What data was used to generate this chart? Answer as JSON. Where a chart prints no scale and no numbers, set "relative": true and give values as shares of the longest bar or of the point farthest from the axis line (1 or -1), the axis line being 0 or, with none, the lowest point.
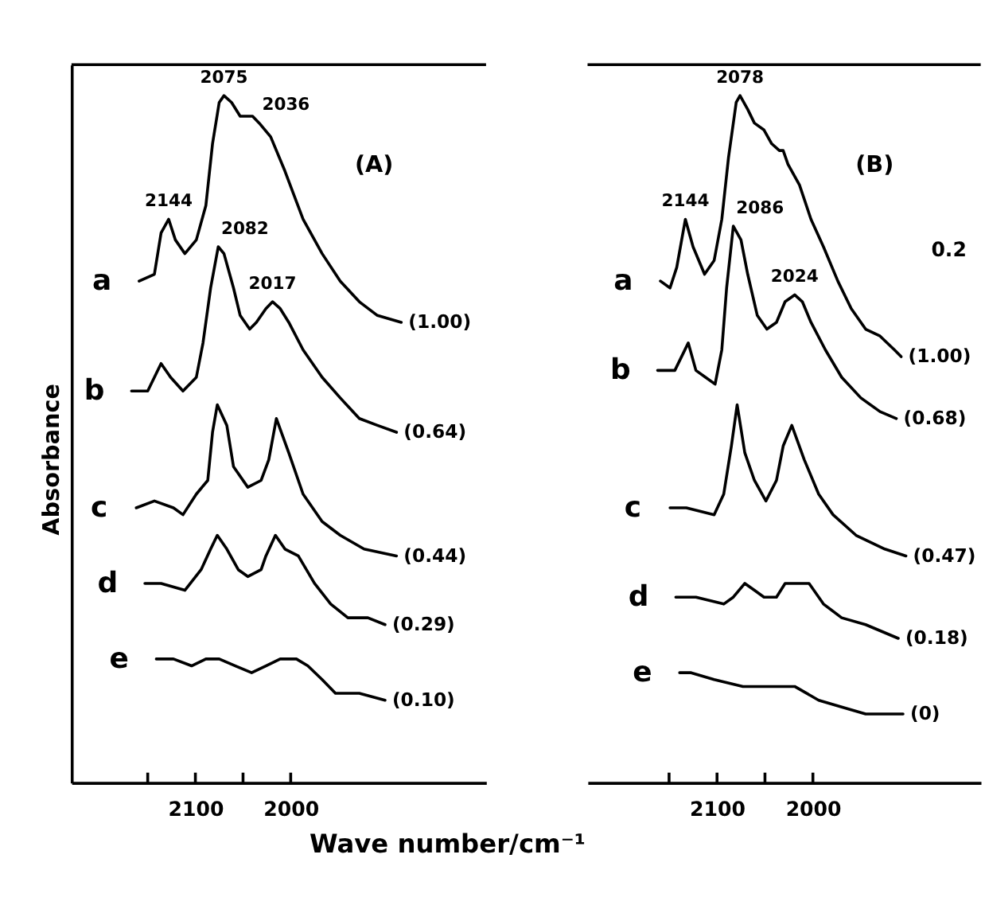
{
  "chart_data": [
    {
      "type": "line",
      "relative": true,
      "ylabel": "Absorbance",
      "xlabel": "Wave number/cm⁻¹",
      "xlim": [
        2230,
        1795
      ],
      "xticks": [
        2100,
        2000
      ],
      "tick_labels": "x",
      "grid": false,
      "legend": false,
      "series": [
        {
          "name": "a",
          "color": "#000000",
          "x": [
            2159,
            2143,
            2136,
            2128,
            2121,
            2111,
            2099,
            2089,
            2082,
            2075,
            2070,
            2062,
            2053,
            2040,
            2033,
            2021,
            2006,
            1987,
            1967,
            1948,
            1928,
            1909,
            1884
          ],
          "values": [
            0.73,
            0.74,
            0.8,
            0.82,
            0.79,
            0.77,
            0.79,
            0.84,
            0.93,
            0.99,
            1.0,
            0.99,
            0.97,
            0.97,
            0.96,
            0.94,
            0.89,
            0.82,
            0.77,
            0.73,
            0.7,
            0.68,
            0.67
          ]
        },
        {
          "name": "b",
          "color": "#000000",
          "x": [
            2167,
            2150,
            2136,
            2126,
            2113,
            2099,
            2092,
            2084,
            2076,
            2070,
            2060,
            2053,
            2043,
            2036,
            2026,
            2019,
            2011,
            2002,
            1987,
            1967,
            1948,
            1928,
            1909,
            1889
          ],
          "values": [
            0.57,
            0.57,
            0.61,
            0.59,
            0.57,
            0.59,
            0.64,
            0.72,
            0.78,
            0.77,
            0.72,
            0.68,
            0.66,
            0.67,
            0.69,
            0.7,
            0.69,
            0.67,
            0.63,
            0.59,
            0.56,
            0.53,
            0.52,
            0.51
          ]
        },
        {
          "name": "c",
          "color": "#000000",
          "x": [
            2162,
            2143,
            2123,
            2113,
            2099,
            2087,
            2082,
            2077,
            2067,
            2060,
            2045,
            2031,
            2023,
            2015,
            2002,
            1987,
            1967,
            1948,
            1923,
            1889
          ],
          "values": [
            0.4,
            0.41,
            0.4,
            0.39,
            0.42,
            0.44,
            0.51,
            0.55,
            0.52,
            0.46,
            0.43,
            0.44,
            0.47,
            0.53,
            0.48,
            0.42,
            0.38,
            0.36,
            0.34,
            0.33
          ]
        },
        {
          "name": "d",
          "color": "#000000",
          "x": [
            2153,
            2136,
            2111,
            2094,
            2084,
            2077,
            2067,
            2055,
            2045,
            2031,
            2026,
            2016,
            2006,
            1992,
            1975,
            1958,
            1940,
            1919,
            1901
          ],
          "values": [
            0.29,
            0.29,
            0.28,
            0.31,
            0.34,
            0.36,
            0.34,
            0.31,
            0.3,
            0.31,
            0.33,
            0.36,
            0.34,
            0.33,
            0.29,
            0.26,
            0.24,
            0.24,
            0.23
          ]
        },
        {
          "name": "e",
          "color": "#000000",
          "x": [
            2141,
            2123,
            2104,
            2089,
            2075,
            2058,
            2041,
            2026,
            2011,
            1994,
            1982,
            1967,
            1953,
            1928,
            1901
          ],
          "values": [
            0.18,
            0.18,
            0.17,
            0.18,
            0.18,
            0.17,
            0.16,
            0.17,
            0.18,
            0.18,
            0.17,
            0.15,
            0.13,
            0.13,
            0.12
          ]
        }
      ],
      "annotations": [
        "(A)",
        {
          "text": "2075",
          "x": 2070,
          "y": 1.0
        },
        {
          "text": "2036",
          "x": 2033,
          "y": 0.96
        },
        {
          "text": "2144",
          "x": 2128,
          "y": 0.82
        },
        {
          "text": "2082",
          "x": 2076,
          "y": 0.78
        },
        {
          "text": "2017",
          "x": 2019,
          "y": 0.7
        },
        {
          "text": "(1.00)",
          "x": 1884,
          "y": 0.67
        },
        {
          "text": "(0.64)",
          "x": 1889,
          "y": 0.51
        },
        {
          "text": "(0.44)",
          "x": 1889,
          "y": 0.33
        },
        {
          "text": "(0.29)",
          "x": 1901,
          "y": 0.23
        },
        {
          "text": "(0.10)",
          "x": 1901,
          "y": 0.12
        }
      ]
    },
    {
      "type": "line",
      "relative": true,
      "xlim": [
        2235,
        1825
      ],
      "xticks": [
        2100,
        2000
      ],
      "tick_labels": "x",
      "grid": false,
      "legend": false,
      "series": [
        {
          "name": "a",
          "color": "#000000",
          "x": [
            2159,
            2149,
            2142,
            2133,
            2125,
            2113,
            2103,
            2095,
            2088,
            2080,
            2076,
            2068,
            2061,
            2051,
            2043,
            2035,
            2031,
            2026,
            2014,
            2002,
            1989,
            1974,
            1960,
            1945,
            1930,
            1915,
            1908
          ],
          "values": [
            0.73,
            0.72,
            0.75,
            0.82,
            0.78,
            0.74,
            0.76,
            0.82,
            0.91,
            0.99,
            1.0,
            0.98,
            0.96,
            0.95,
            0.93,
            0.92,
            0.92,
            0.9,
            0.87,
            0.82,
            0.78,
            0.73,
            0.69,
            0.66,
            0.65,
            0.63,
            0.62
          ]
        },
        {
          "name": "b",
          "color": "#000000",
          "x": [
            2162,
            2144,
            2137,
            2130,
            2122,
            2112,
            2102,
            2095,
            2090,
            2083,
            2075,
            2068,
            2058,
            2048,
            2038,
            2029,
            2019,
            2011,
            2002,
            1987,
            1970,
            1950,
            1930,
            1913
          ],
          "values": [
            0.6,
            0.6,
            0.62,
            0.64,
            0.6,
            0.59,
            0.58,
            0.63,
            0.72,
            0.81,
            0.79,
            0.74,
            0.68,
            0.66,
            0.67,
            0.7,
            0.71,
            0.7,
            0.67,
            0.63,
            0.59,
            0.56,
            0.54,
            0.53
          ]
        },
        {
          "name": "c",
          "color": "#000000",
          "x": [
            2149,
            2132,
            2103,
            2093,
            2085,
            2079,
            2071,
            2061,
            2049,
            2038,
            2031,
            2022,
            2009,
            1994,
            1979,
            1955,
            1925,
            1903
          ],
          "values": [
            0.4,
            0.4,
            0.39,
            0.42,
            0.49,
            0.55,
            0.48,
            0.44,
            0.41,
            0.44,
            0.49,
            0.52,
            0.47,
            0.42,
            0.39,
            0.36,
            0.34,
            0.33
          ]
        },
        {
          "name": "d",
          "color": "#000000",
          "x": [
            2143,
            2122,
            2093,
            2083,
            2071,
            2061,
            2051,
            2038,
            2029,
            2014,
            2004,
            1989,
            1970,
            1945,
            1911
          ],
          "values": [
            0.27,
            0.27,
            0.26,
            0.27,
            0.29,
            0.28,
            0.27,
            0.27,
            0.29,
            0.29,
            0.29,
            0.26,
            0.24,
            0.23,
            0.21
          ]
        },
        {
          "name": "e",
          "color": "#000000",
          "x": [
            2139,
            2127,
            2103,
            2073,
            2043,
            2019,
            1994,
            1970,
            1945,
            1906
          ],
          "values": [
            0.16,
            0.16,
            0.15,
            0.14,
            0.14,
            0.14,
            0.12,
            0.11,
            0.1,
            0.1
          ]
        }
      ],
      "annotations": [
        "(B)",
        "0.2",
        {
          "text": "2144",
          "x": 2133,
          "y": 0.82
        },
        {
          "text": "2078",
          "x": 2076,
          "y": 1.0
        },
        {
          "text": "2086",
          "x": 2083,
          "y": 0.81
        },
        {
          "text": "2024",
          "x": 2019,
          "y": 0.71
        },
        {
          "text": "(1.00)",
          "x": 1908,
          "y": 0.62
        },
        {
          "text": "(0.68)",
          "x": 1913,
          "y": 0.53
        },
        {
          "text": "(0.47)",
          "x": 1903,
          "y": 0.33
        },
        {
          "text": "(0.18)",
          "x": 1911,
          "y": 0.21
        },
        {
          "text": "(0)",
          "x": 1906,
          "y": 0.1
        }
      ]
    }
  ]
}
